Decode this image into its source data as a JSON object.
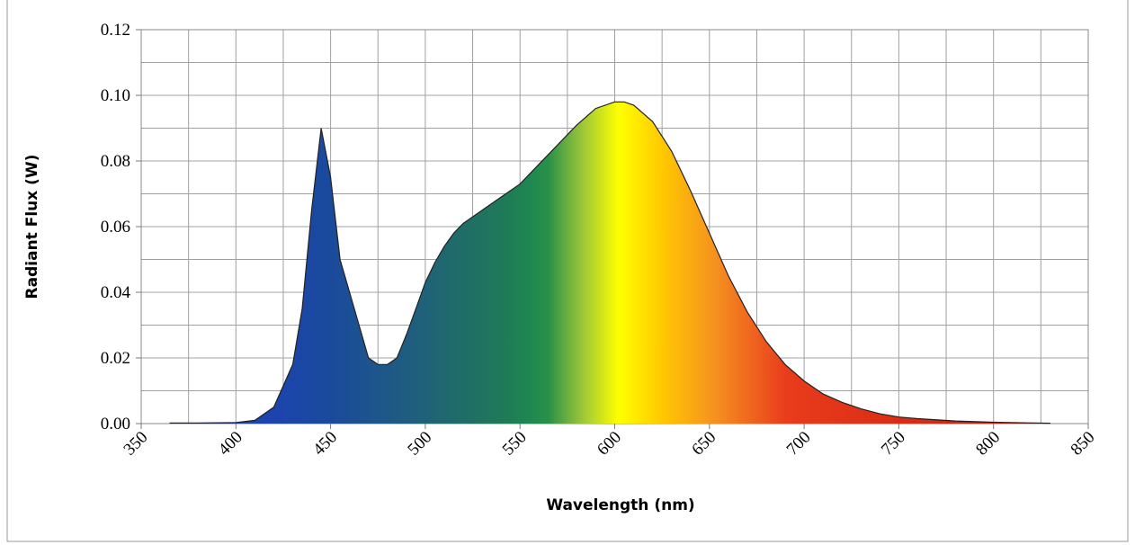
{
  "chart_data": {
    "type": "area",
    "x_label": "Wavelength (nm)",
    "y_label": "Radiant Flux (W)",
    "x": [
      365,
      380,
      400,
      410,
      420,
      430,
      435,
      440,
      445,
      450,
      455,
      460,
      465,
      470,
      475,
      480,
      485,
      490,
      495,
      500,
      505,
      510,
      515,
      520,
      530,
      540,
      550,
      560,
      570,
      580,
      590,
      600,
      605,
      610,
      620,
      630,
      640,
      650,
      660,
      670,
      680,
      690,
      700,
      710,
      720,
      730,
      740,
      750,
      760,
      780,
      800,
      830
    ],
    "values": [
      0.0002,
      0.0002,
      0.0003,
      0.001,
      0.005,
      0.018,
      0.035,
      0.065,
      0.09,
      0.075,
      0.05,
      0.04,
      0.03,
      0.02,
      0.018,
      0.018,
      0.02,
      0.027,
      0.035,
      0.043,
      0.049,
      0.054,
      0.058,
      0.061,
      0.065,
      0.069,
      0.073,
      0.079,
      0.085,
      0.091,
      0.096,
      0.098,
      0.098,
      0.097,
      0.092,
      0.083,
      0.071,
      0.058,
      0.045,
      0.034,
      0.025,
      0.018,
      0.013,
      0.009,
      0.0065,
      0.0045,
      0.003,
      0.002,
      0.0015,
      0.0008,
      0.0004,
      0.0001
    ],
    "xlim": [
      350,
      850
    ],
    "xticks": [
      350,
      400,
      450,
      500,
      550,
      600,
      650,
      700,
      750,
      800,
      850
    ],
    "xminorticks": [
      375,
      425,
      475,
      525,
      575,
      625,
      675,
      725,
      775,
      825
    ],
    "ylim": [
      0,
      0.12
    ],
    "yticks": [
      {
        "value": 0,
        "label": "0.00"
      },
      {
        "value": 0.02,
        "label": "0.02"
      },
      {
        "value": 0.04,
        "label": "0.04"
      },
      {
        "value": 0.06,
        "label": "0.06"
      },
      {
        "value": 0.08,
        "label": "0.08"
      },
      {
        "value": 0.1,
        "label": "0.10"
      },
      {
        "value": 0.12,
        "label": "0.12"
      }
    ],
    "yminorticks": [
      0.01,
      0.03,
      0.05,
      0.07,
      0.09,
      0.11
    ],
    "grid": true,
    "line_color": "#222222"
  }
}
